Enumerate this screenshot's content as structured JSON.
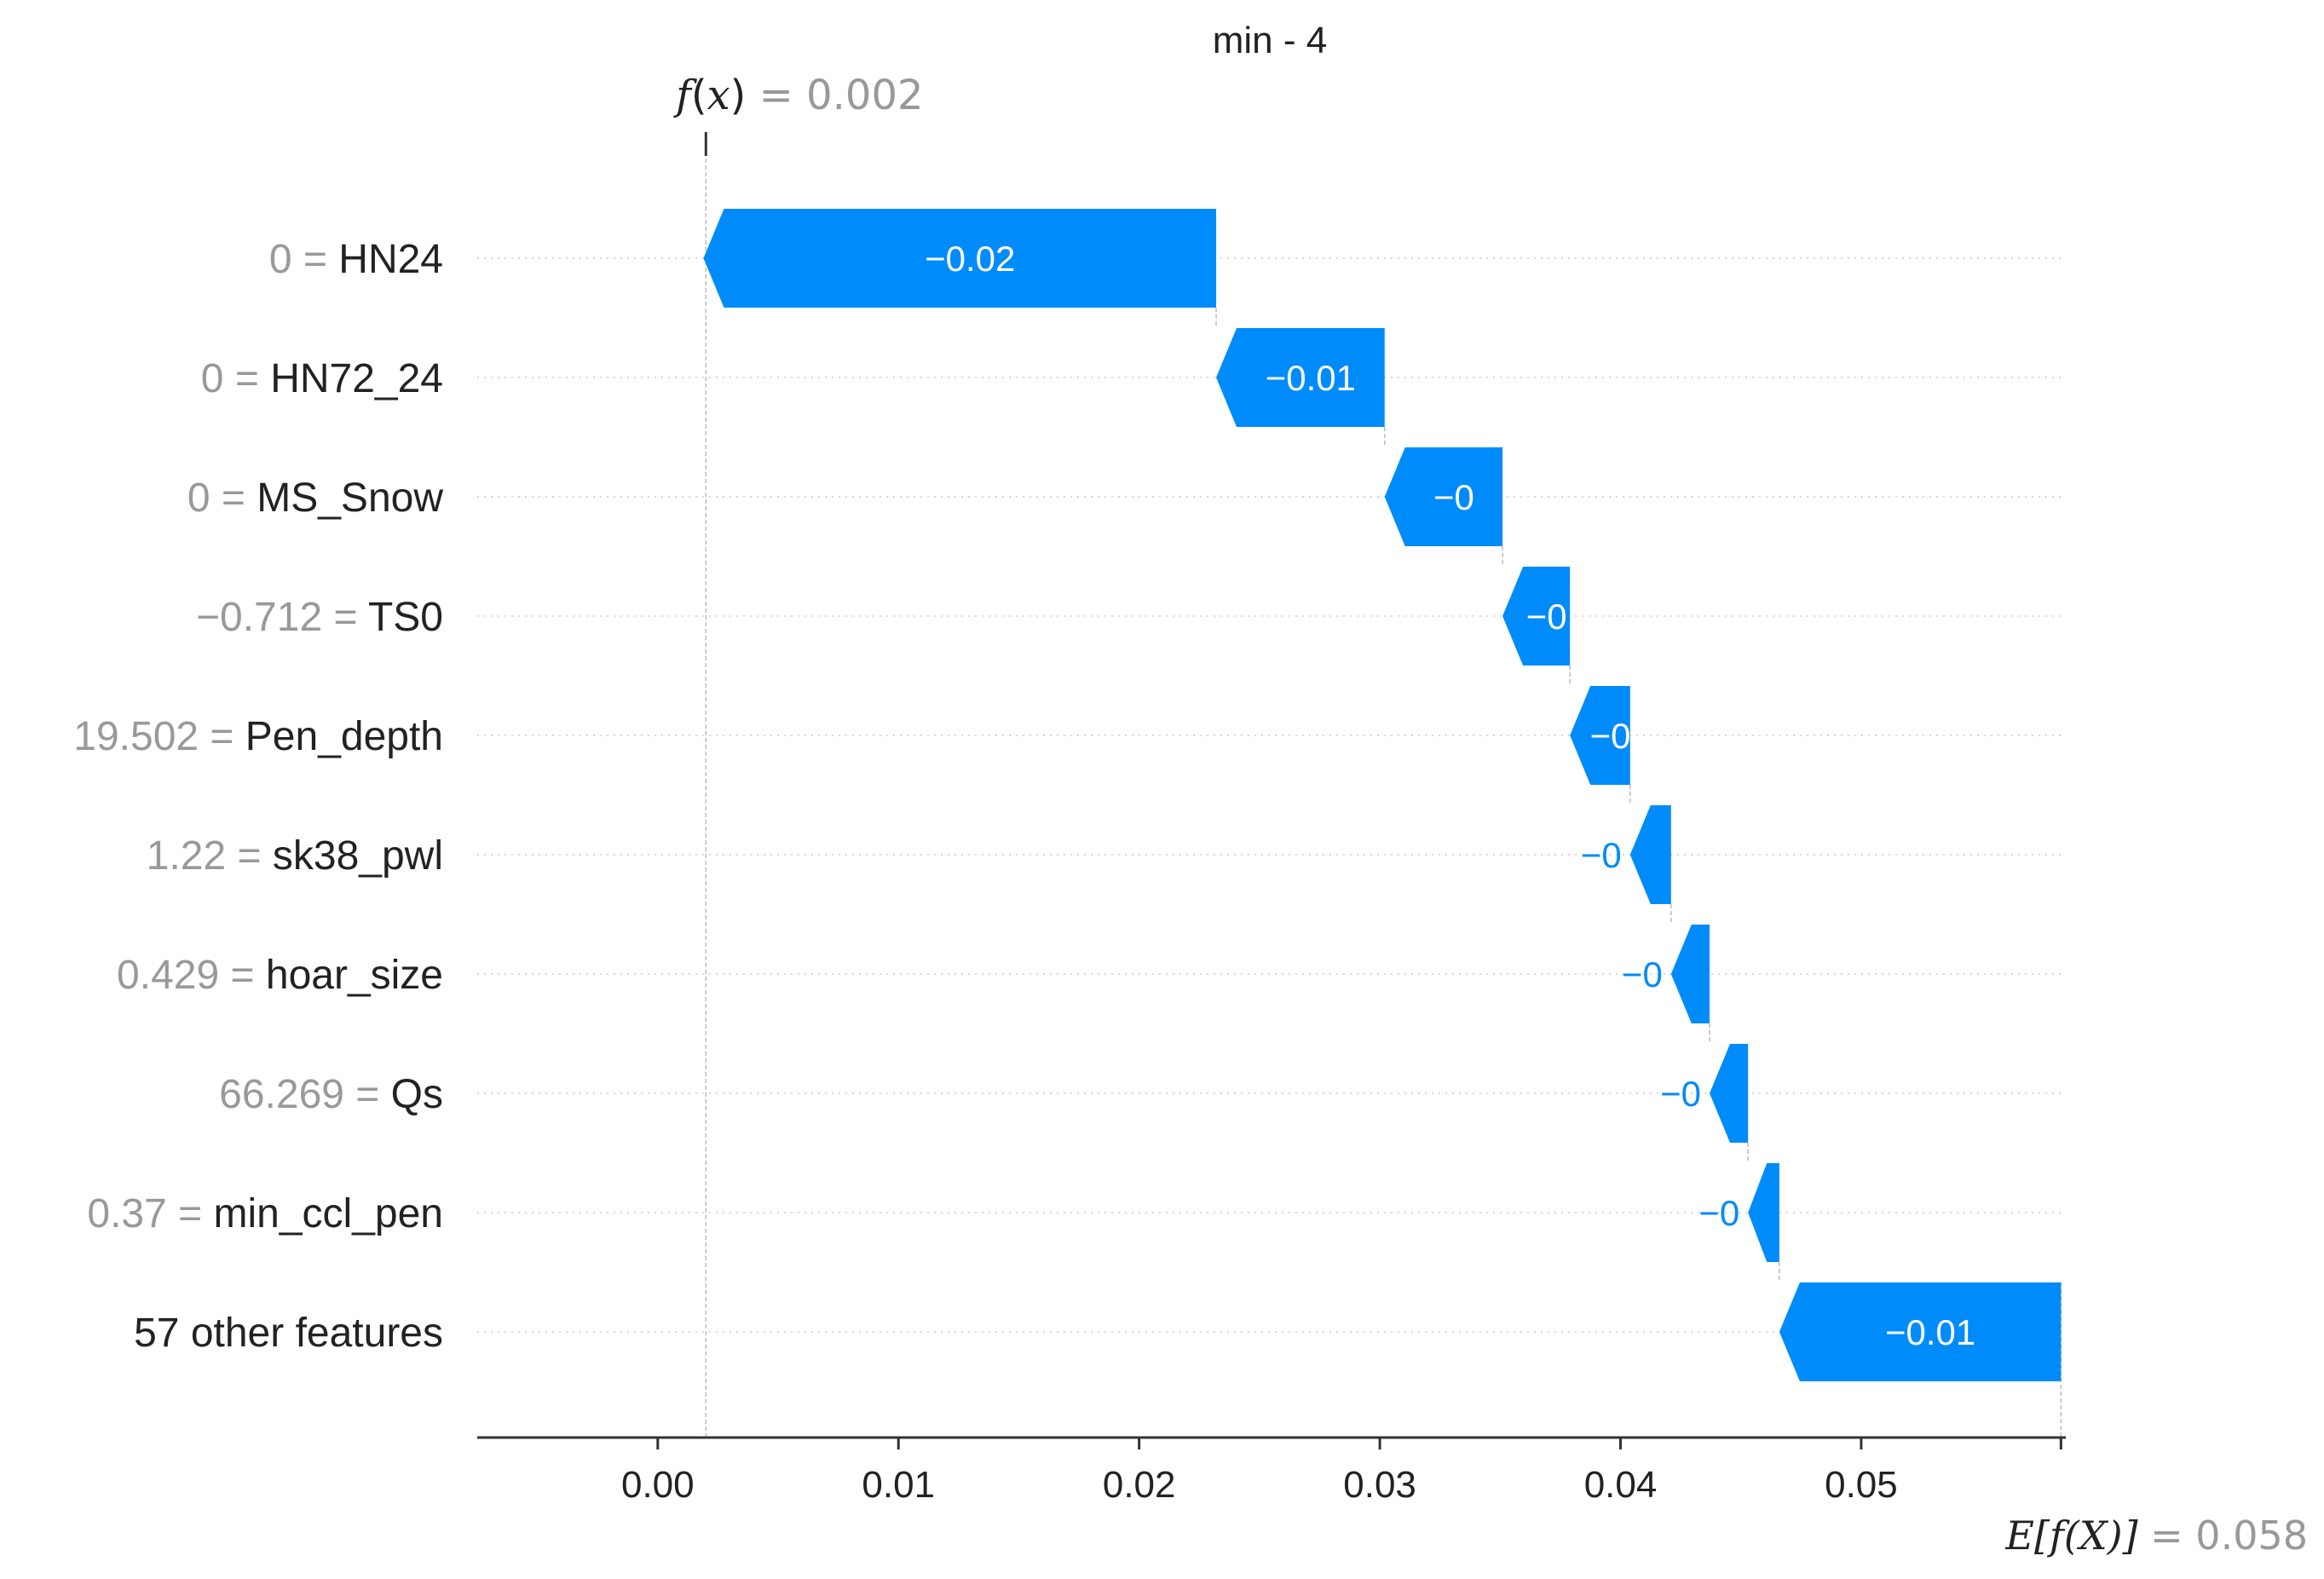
{
  "chart_data": {
    "type": "waterfall",
    "title": "min - 4",
    "fx": {
      "label_prefix": "f",
      "label_var": "x",
      "value_text": "= 0.002",
      "value": 0.002
    },
    "efx": {
      "label": "E[f(X)]",
      "value_text": "= 0.058",
      "value": 0.0583
    },
    "xlim": [
      -0.0075,
      0.0585
    ],
    "x_ticks": [
      "0.00",
      "0.01",
      "0.02",
      "0.03",
      "0.04",
      "0.05"
    ],
    "x_tick_values": [
      0.0,
      0.01,
      0.02,
      0.03,
      0.04,
      0.05
    ],
    "colors": {
      "negative": "#008bfb",
      "axis": "#333333",
      "muted": "#999999",
      "text": "#222222"
    },
    "features": [
      {
        "value": "0",
        "name": "HN24",
        "shap": -0.0213,
        "label": "−0.02",
        "label_inside": true
      },
      {
        "value": "0",
        "name": "HN72_24",
        "shap": -0.007,
        "label": "−0.01",
        "label_inside": true
      },
      {
        "value": "0",
        "name": "MS_Snow",
        "shap": -0.0049,
        "label": "−0",
        "label_inside": true
      },
      {
        "value": "−0.712",
        "name": "TS0",
        "shap": -0.0028,
        "label": "−0",
        "label_inside": true
      },
      {
        "value": "19.502",
        "name": "Pen_depth",
        "shap": -0.0025,
        "label": "−0",
        "label_inside": true
      },
      {
        "value": "1.22",
        "name": "sk38_pwl",
        "shap": -0.0017,
        "label": "−0",
        "label_inside": false
      },
      {
        "value": "0.429",
        "name": "hoar_size",
        "shap": -0.0016,
        "label": "−0",
        "label_inside": false
      },
      {
        "value": "66.269",
        "name": "Qs",
        "shap": -0.0016,
        "label": "−0",
        "label_inside": false
      },
      {
        "value": "0.37",
        "name": "min_ccl_pen",
        "shap": -0.0013,
        "label": "−0",
        "label_inside": false
      },
      {
        "value": "",
        "name": "57 other features",
        "shap": -0.0117,
        "label": "−0.01",
        "label_inside": true
      }
    ]
  }
}
